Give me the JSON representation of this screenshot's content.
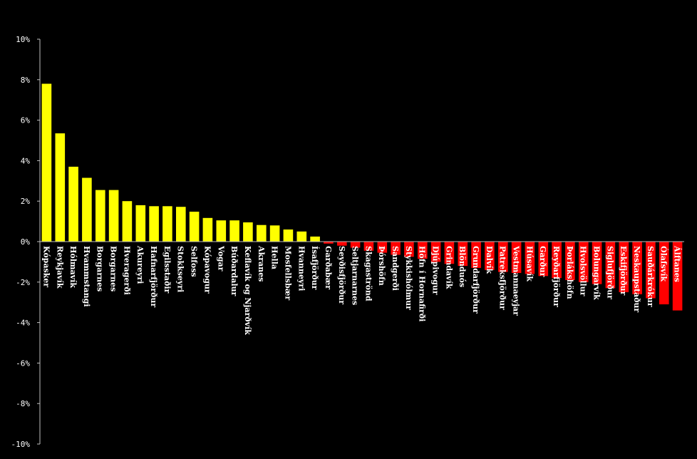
{
  "chart_data": {
    "type": "bar",
    "ylim": [
      -10,
      10
    ],
    "yticks": [
      10,
      8,
      6,
      4,
      2,
      0,
      -2,
      -4,
      -6,
      -8,
      -10
    ],
    "ytick_labels": [
      "10%",
      "8%",
      "6%",
      "4%",
      "2%",
      "0%",
      "-2%",
      "-4%",
      "-6%",
      "-8%",
      "-10%"
    ],
    "grid": false,
    "colors": {
      "positive": "#ffff00",
      "negative": "#ff0000",
      "axis": "#c0c0c0",
      "background": "#000000",
      "text": "#ffffff"
    },
    "categories": [
      "Kópasker",
      "Reykjavík",
      "Hólmavík",
      "Hvammstangi",
      "Borgarnes",
      "Borgarnes",
      "Hveragerði",
      "Akureyri",
      "Hafnarfjörður",
      "Egilsstaðir",
      "Stokkseyri",
      "Selfoss",
      "Kópavogur",
      "Vogar",
      "Búðardalur",
      "Keflavík og Njarðvík",
      "Akranes",
      "Hella",
      "Mosfellsbær",
      "Hvanneyri",
      "Ísafjörður",
      "Garðabær",
      "Seyðisfjörður",
      "Seltjarnarnes",
      "Skagaströnd",
      "Þórshöfn",
      "Sandgerði",
      "Stykkishólmur",
      "Höfn í Hornafirði",
      "Djúpivogur",
      "Grindavík",
      "Blönduós",
      "Grundarfjörður",
      "Dalvík",
      "Patreksfjörður",
      "Vestmannaeyjar",
      "Húsavík",
      "Garður",
      "Reyðarfjörður",
      "Þorlákshöfn",
      "Hvolsvöllur",
      "Bolungarvík",
      "Siglufjörður",
      "Eskifjörður",
      "Neskaupstaður",
      "Sauðárkrókur",
      "Ólafsvík",
      "Álftanes"
    ],
    "values": [
      7.8,
      5.35,
      3.7,
      3.15,
      2.55,
      2.55,
      2.0,
      1.8,
      1.75,
      1.75,
      1.72,
      1.48,
      1.17,
      1.05,
      1.05,
      0.95,
      0.82,
      0.8,
      0.6,
      0.5,
      0.25,
      -0.1,
      -0.2,
      -0.3,
      -0.45,
      -0.55,
      -0.65,
      -0.75,
      -0.85,
      -1.0,
      -1.1,
      -1.2,
      -1.3,
      -1.4,
      -1.5,
      -1.55,
      -1.6,
      -1.7,
      -1.8,
      -1.9,
      -2.0,
      -2.1,
      -2.3,
      -2.5,
      -2.6,
      -2.8,
      -3.1,
      -3.4
    ]
  }
}
